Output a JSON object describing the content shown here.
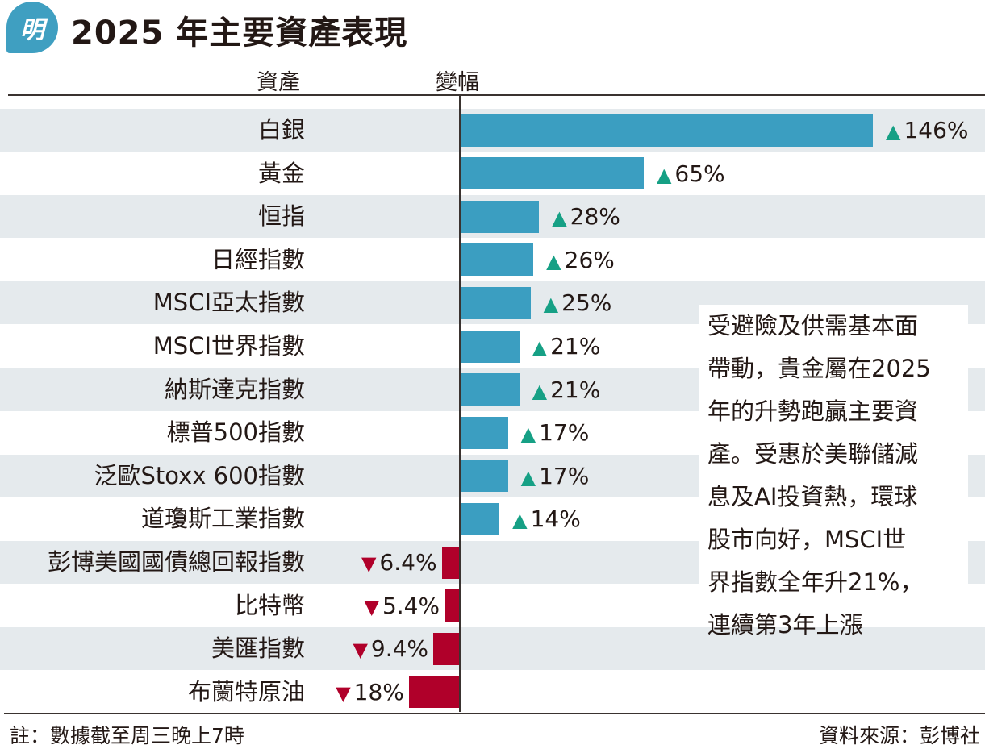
{
  "header": {
    "logo_text": "明",
    "title": "2025 年主要資產表現"
  },
  "columns": {
    "asset": "資產",
    "change": "變幅"
  },
  "chart_data": {
    "type": "bar",
    "orientation": "horizontal",
    "title": "2025 年主要資產表現",
    "categories": [
      "白銀",
      "黃金",
      "恒指",
      "日經指數",
      "MSCI亞太指數",
      "MSCI世界指數",
      "納斯達克指數",
      "標普500指數",
      "泛歐Stoxx 600指數",
      "道瓊斯工業指數",
      "彭博美國國債總回報指數",
      "比特幣",
      "美匯指數",
      "布蘭特原油"
    ],
    "values": [
      146,
      65,
      28,
      26,
      25,
      21,
      21,
      17,
      17,
      14,
      -6.4,
      -5.4,
      -9.4,
      -18
    ],
    "labels": [
      "146%",
      "65%",
      "28%",
      "26%",
      "25%",
      "21%",
      "21%",
      "17%",
      "17%",
      "14%",
      "6.4%",
      "5.4%",
      "9.4%",
      "18%"
    ],
    "unit": "%",
    "colors": {
      "positive_bar": "#3b9ec1",
      "negative_bar": "#b0002a",
      "up_arrow": "#16a085",
      "down_arrow": "#b0002a",
      "row_stripe": "#e5eaed"
    },
    "grid": false
  },
  "note_box": {
    "lines": [
      "受避險及供需基本面",
      "帶動，貴金屬在2025",
      "年的升勢跑贏主要資",
      "產。受惠於美聯儲減",
      "息及AI投資熱，環球",
      "股市向好，MSCI世",
      "界指數全年升21%，",
      "連續第3年上漲"
    ]
  },
  "footer": {
    "note": "註：數據截至周三晚上7時",
    "source": "資料來源：彭博社"
  }
}
